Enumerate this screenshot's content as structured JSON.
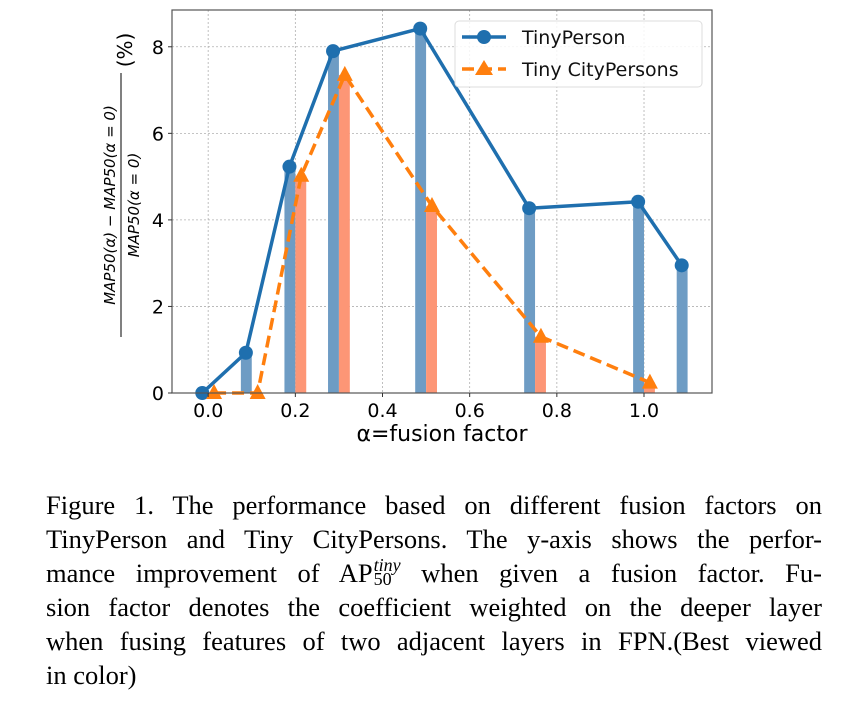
{
  "chart_data": {
    "type": "bar+line",
    "title": "",
    "xlabel": "α=fusion factor",
    "ylabel": {
      "numerator": "MAP50(α) − MAP50(α = 0)",
      "denominator": "MAP50(α = 0)",
      "unit": "(%)"
    },
    "xlim": [
      -0.083,
      1.156
    ],
    "ylim": [
      0,
      8.85
    ],
    "xticks": [
      0.0,
      0.2,
      0.4,
      0.6,
      0.8,
      1.0
    ],
    "xtick_labels": [
      "0.0",
      "0.2",
      "0.4",
      "0.6",
      "0.8",
      "1.0"
    ],
    "yticks": [
      0,
      2,
      4,
      6,
      8
    ],
    "ytick_labels": [
      "0",
      "2",
      "4",
      "6",
      "8"
    ],
    "grid": true,
    "legend_position": "top-right",
    "series": [
      {
        "name": "TinyPerson",
        "marker": "circle",
        "linestyle": "solid",
        "line_color": "#1f6fae",
        "bar_color": "#6e9cc4",
        "x": [
          0.0,
          0.1,
          0.2,
          0.3,
          0.5,
          0.75,
          1.0,
          1.1
        ],
        "values": [
          0.0,
          0.93,
          5.23,
          7.9,
          8.42,
          4.27,
          4.42,
          2.95
        ]
      },
      {
        "name": "Tiny CityPersons",
        "marker": "triangle",
        "linestyle": "dashed",
        "line_color": "#ff7f0e",
        "bar_color": "#fd9676",
        "x": [
          0.0,
          0.1,
          0.2,
          0.3,
          0.5,
          0.75,
          1.0
        ],
        "values": [
          0.0,
          0.0,
          5.02,
          7.35,
          4.32,
          1.3,
          0.24
        ]
      }
    ]
  },
  "caption": {
    "lines": [
      "Figure 1. The performance based on different fusion factors on",
      "TinyPerson and Tiny CityPersons.  The y-axis shows the perfor-",
      {
        "before": "mance improvement of ",
        "base": "AP",
        "sup": "tiny",
        "sub": "50",
        "after": " when given a fusion factor.  Fu-"
      },
      "sion factor denotes the coefficient weighted on the deeper layer",
      "when fusing features of two adjacent layers in FPN.(Best viewed",
      "in color)"
    ],
    "line0": "Figure 1. The performance based on different fusion factors on",
    "line1": "TinyPerson and Tiny CityPersons.  The y-axis shows the perfor-",
    "line2_before": "mance improvement of ",
    "line2_base": "AP",
    "line2_sup": "tiny",
    "line2_sub": "50",
    "line2_after": " when given a fusion factor.  Fu-",
    "line3": "sion factor denotes the coefficient weighted on the deeper layer",
    "line4": "when fusing features of two adjacent layers in FPN.(Best viewed",
    "line5": "in color)"
  }
}
